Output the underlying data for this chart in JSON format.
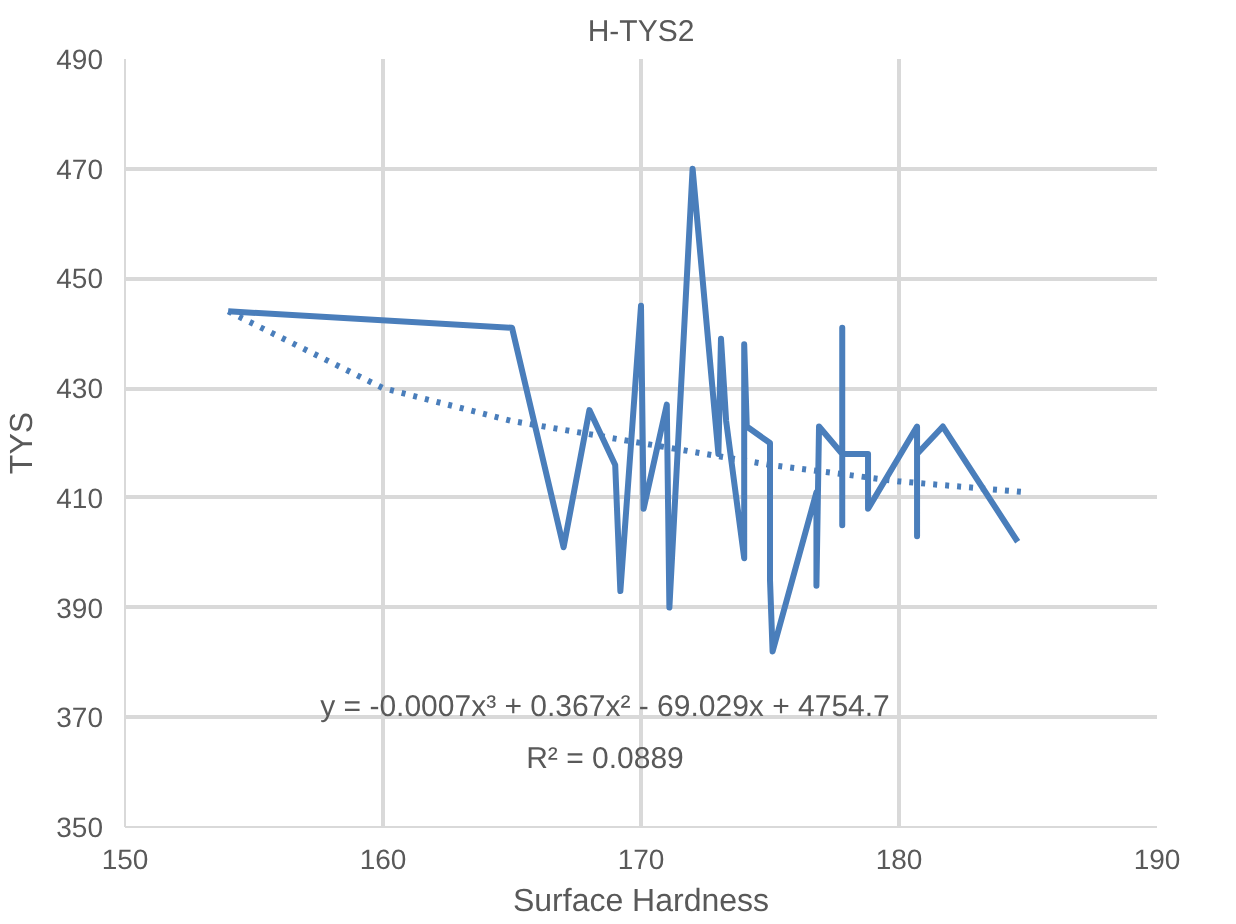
{
  "chart_data": {
    "type": "line",
    "title": "H-TYS2",
    "xlabel": "Surface Hardness",
    "ylabel": "TYS",
    "xlim": [
      150,
      190
    ],
    "xticks": [
      150,
      160,
      170,
      180,
      190
    ],
    "ylim": [
      350,
      490
    ],
    "yticks": [
      350,
      370,
      390,
      410,
      430,
      450,
      470,
      490
    ],
    "grid": true,
    "series": [
      {
        "color": "#4a7ebb",
        "line_style": "solid",
        "x": [
          154,
          165,
          167,
          168,
          169,
          169.2,
          170,
          170.1,
          171,
          171.1,
          172,
          173,
          173.1,
          173.3,
          174,
          174,
          174.1,
          175,
          175,
          175.1,
          176.8,
          176.8,
          176.9,
          177.8,
          177.8,
          177.8,
          177.8,
          178.8,
          178.8,
          178.8,
          180.7,
          180.7,
          180.7,
          181.7,
          184.6
        ],
        "values": [
          444,
          441,
          401,
          426,
          416,
          393,
          445,
          408,
          427,
          390,
          470,
          418,
          439,
          424,
          399,
          438,
          423,
          420,
          395,
          382,
          411,
          394,
          423,
          418,
          441,
          405,
          418,
          418,
          408,
          408,
          423,
          403,
          418,
          423,
          402
        ]
      },
      {
        "color": "#4a7ebb",
        "line_style": "dotted",
        "x": [
          154,
          160,
          165,
          170,
          175,
          180,
          185
        ],
        "values": [
          444,
          430,
          424,
          420,
          416,
          413,
          411
        ]
      }
    ],
    "annotations": [
      "y = -0.0007x³ + 0.367x² - 69.029x + 4754.7",
      "R² = 0.0889"
    ]
  }
}
